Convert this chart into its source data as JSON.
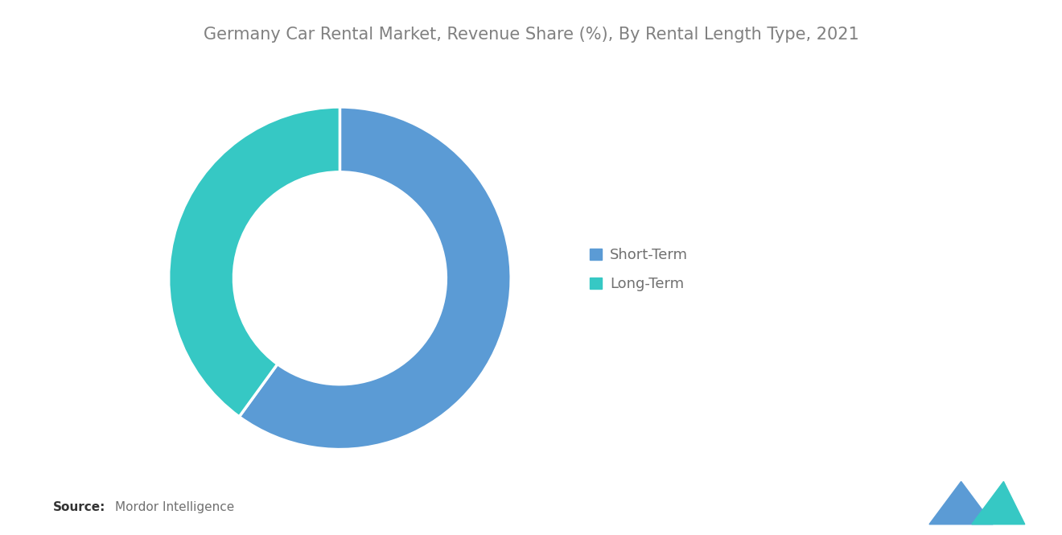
{
  "title": "Germany Car Rental Market, Revenue Share (%), By Rental Length Type, 2021",
  "labels": [
    "Short-Term",
    "Long-Term"
  ],
  "values": [
    60,
    40
  ],
  "colors": [
    "#5B9BD5",
    "#36C8C4"
  ],
  "donut_width": 0.38,
  "background_color": "#ffffff",
  "title_color": "#808080",
  "title_fontsize": 15,
  "legend_fontsize": 13,
  "legend_text_color": "#707070",
  "source_bold": "Source:",
  "source_text": "Mordor Intelligence",
  "source_fontsize": 11,
  "logo_color1": "#5B9BD5",
  "logo_color2": "#36C8C4"
}
